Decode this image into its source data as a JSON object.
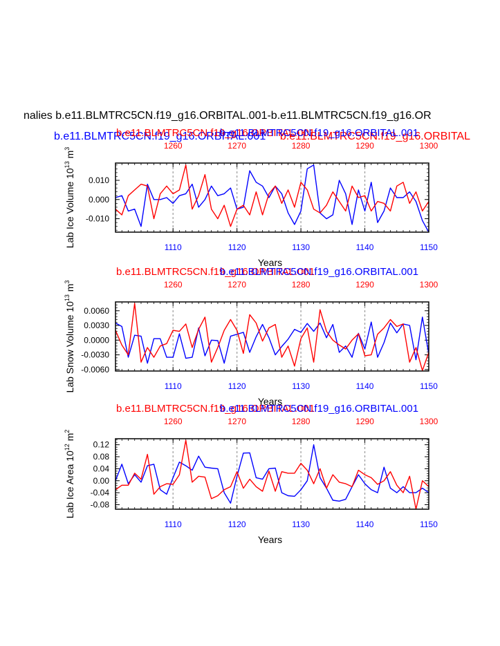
{
  "figure": {
    "main_title": "nalies b.e11.BLMTRC5CN.f19_g16.ORBITAL.001-b.e11.BLMTRC5CN.f19_g16.OR",
    "subtitle_left": "b.e11.BLMTRC5CN.f19_g16.ORBITAL.001",
    "subtitle_right": "b.e11.BLMTRC5CN.f19_g16.ORBITAL",
    "colors": {
      "red": "#ff0000",
      "blue": "#0000ff",
      "black": "#000000",
      "grid": "#999999"
    }
  },
  "chart_data": [
    {
      "type": "line",
      "title_red": "b.e11.BLMTRC5CN.f19_g16.ORBITAL.001",
      "title_blue": "b.e11.BLMTRC5CN.f19_g16.ORBITAL.001",
      "xlabel": "Years",
      "ylabel": "Lab Ice Volume 10",
      "ylabel_exp": "13",
      "ylabel_unit": "m",
      "ylabel_unit_exp": "3",
      "xlim_bottom": [
        1101,
        1150
      ],
      "xlim_top": [
        1251,
        1300
      ],
      "ylim": [
        -0.017,
        0.019
      ],
      "yticks": [
        -0.01,
        0.0,
        0.01
      ],
      "yticklabels": [
        "-0.010",
        "0.000",
        "0.010"
      ],
      "xticks_bottom": [
        1110,
        1120,
        1130,
        1140,
        1150
      ],
      "xticks_top": [
        1260,
        1270,
        1280,
        1290,
        1300
      ],
      "series": [
        {
          "name": "b.e11.BLMTRC5CN.f19_g16.ORBITAL.001 (bottom axis)",
          "color": "#0000ff",
          "x_start": 1101,
          "values": [
            0.001,
            0.002,
            -0.006,
            -0.005,
            -0.014,
            0.008,
            0.0,
            0.0,
            0.001,
            -0.002,
            0.002,
            0.003,
            0.008,
            -0.004,
            0.0,
            0.007,
            0.002,
            0.003,
            0.006,
            -0.005,
            -0.004,
            0.015,
            0.009,
            0.007,
            0.001,
            0.007,
            0.003,
            -0.007,
            -0.013,
            -0.006,
            0.016,
            0.018,
            -0.007,
            -0.01,
            -0.008,
            0.01,
            0.003,
            -0.013,
            0.005,
            -0.006,
            0.009,
            -0.012,
            -0.006,
            0.006,
            0.001,
            0.001,
            0.004,
            -0.001,
            -0.011,
            -0.017
          ]
        },
        {
          "name": "b.e11.BLMTRC5CN.f19_g16.ORBITAL (top axis)",
          "color": "#ff0000",
          "x_start": 1251,
          "values": [
            -0.005,
            -0.008,
            0.002,
            0.005,
            0.008,
            0.007,
            -0.01,
            0.003,
            0.007,
            0.003,
            0.005,
            0.018,
            -0.005,
            0.002,
            0.013,
            -0.005,
            -0.01,
            -0.003,
            -0.014,
            -0.005,
            -0.003,
            -0.008,
            0.004,
            -0.008,
            0.003,
            0.007,
            -0.002,
            0.005,
            -0.004,
            0.009,
            0.005,
            -0.005,
            -0.007,
            -0.003,
            0.004,
            -0.001,
            -0.006,
            0.007,
            0.001,
            0.002,
            -0.006,
            -0.001,
            -0.002,
            -0.006,
            0.007,
            0.009,
            -0.002,
            0.004,
            -0.006,
            -0.001
          ]
        }
      ]
    },
    {
      "type": "line",
      "title_red": "b.e11.BLMTRC5CN.f19_g16.ORBITAL.001",
      "title_blue": "b.e11.BLMTRC5CN.f19_g16.ORBITAL.001",
      "xlabel": "Years",
      "ylabel": "Lab Snow Volume 10",
      "ylabel_exp": "13",
      "ylabel_unit": "m",
      "ylabel_unit_exp": "3",
      "xlim_bottom": [
        1101,
        1150
      ],
      "xlim_top": [
        1251,
        1300
      ],
      "ylim": [
        -0.0063,
        0.0078
      ],
      "yticks": [
        -0.006,
        -0.003,
        0.0,
        0.003,
        0.006
      ],
      "yticklabels": [
        "-0.0060",
        "-0.0030",
        "0.0000",
        "0.0030",
        "0.0060"
      ],
      "xticks_bottom": [
        1110,
        1120,
        1130,
        1140,
        1150
      ],
      "xticks_top": [
        1260,
        1270,
        1280,
        1290,
        1300
      ],
      "series": [
        {
          "name": "b.e11.BLMTRC5CN.f19_g16.ORBITAL.001 (bottom axis)",
          "color": "#0000ff",
          "x_start": 1101,
          "values": [
            0.0035,
            0.0028,
            -0.0035,
            0.001,
            0.0008,
            -0.0047,
            0.0003,
            0.0003,
            -0.0035,
            -0.0035,
            0.0013,
            -0.0037,
            -0.0035,
            0.0025,
            -0.0032,
            0.0,
            -0.0001,
            -0.0047,
            0.0008,
            0.0012,
            0.0016,
            -0.0025,
            0.0007,
            0.0032,
            0.0005,
            -0.003,
            -0.0013,
            0.0002,
            0.0022,
            0.0016,
            0.0034,
            0.0018,
            0.0035,
            0.0005,
            0.0032,
            -0.0025,
            -0.0012,
            -0.0035,
            0.0014,
            -0.0018,
            0.0037,
            -0.0035,
            -0.0005,
            0.0035,
            0.0015,
            0.0033,
            0.003,
            -0.004,
            0.0047,
            -0.0028
          ]
        },
        {
          "name": "b.e11.BLMTRC5CN.f19_g16.ORBITAL (top axis)",
          "color": "#ff0000",
          "x_start": 1251,
          "values": [
            0.002,
            -0.001,
            -0.003,
            0.0075,
            -0.0045,
            -0.0015,
            -0.0035,
            -0.0012,
            -0.0007,
            0.002,
            0.0018,
            0.0033,
            -0.0015,
            0.0022,
            0.0047,
            -0.0045,
            -0.0015,
            0.002,
            0.0042,
            0.002,
            -0.0027,
            0.0052,
            0.0035,
            -0.0002,
            0.0025,
            0.0032,
            -0.0035,
            -0.0012,
            -0.0053,
            0.0003,
            0.0025,
            -0.0045,
            0.0062,
            0.0018,
            0.0,
            -0.001,
            -0.0018,
            0.0,
            0.0013,
            -0.0032,
            -0.003,
            0.0012,
            0.0025,
            0.0042,
            0.0028,
            0.0033,
            -0.0045,
            -0.0015,
            -0.0062,
            -0.0025
          ]
        }
      ]
    },
    {
      "type": "line",
      "title_red": "b.e11.BLMTRC5CN.f19_g16.ORBITAL.001",
      "title_blue": "b.e11.BLMTRC5CN.f19_g16.ORBITAL.001",
      "xlabel": "Years",
      "ylabel": "Lab Ice Area 10",
      "ylabel_exp": "12",
      "ylabel_unit": "m",
      "ylabel_unit_exp": "2",
      "xlim_bottom": [
        1101,
        1150
      ],
      "xlim_top": [
        1251,
        1300
      ],
      "ylim": [
        -0.095,
        0.14
      ],
      "yticks": [
        -0.08,
        -0.04,
        0.0,
        0.04,
        0.08,
        0.12
      ],
      "yticklabels": [
        "-0.08",
        "-0.04",
        "0.00",
        "0.04",
        "0.08",
        "0.12"
      ],
      "xticks_bottom": [
        1110,
        1120,
        1130,
        1140,
        1150
      ],
      "xticks_top": [
        1260,
        1270,
        1280,
        1290,
        1300
      ],
      "series": [
        {
          "name": "b.e11.BLMTRC5CN.f19_g16.ORBITAL.001 (bottom axis)",
          "color": "#0000ff",
          "x_start": 1101,
          "values": [
            0.0,
            0.055,
            -0.01,
            0.02,
            -0.005,
            0.05,
            0.055,
            -0.03,
            -0.045,
            0.01,
            0.062,
            0.05,
            0.035,
            0.082,
            0.045,
            0.042,
            0.04,
            -0.04,
            -0.075,
            0.015,
            0.092,
            0.093,
            0.01,
            0.005,
            0.04,
            0.042,
            -0.04,
            -0.05,
            -0.052,
            -0.03,
            0.0,
            0.12,
            0.01,
            -0.025,
            -0.065,
            -0.068,
            -0.062,
            -0.02,
            0.02,
            -0.01,
            -0.03,
            -0.04,
            0.045,
            -0.025,
            -0.04,
            -0.02,
            -0.04,
            -0.04,
            -0.025,
            -0.04
          ]
        },
        {
          "name": "b.e11.BLMTRC5CN.f19_g16.ORBITAL (top axis)",
          "color": "#ff0000",
          "x_start": 1251,
          "values": [
            -0.03,
            -0.015,
            -0.015,
            0.025,
            0.005,
            0.088,
            -0.045,
            -0.02,
            -0.01,
            -0.012,
            0.02,
            0.135,
            -0.005,
            0.015,
            0.012,
            -0.06,
            -0.05,
            -0.03,
            -0.02,
            0.03,
            -0.025,
            0.005,
            -0.02,
            -0.035,
            0.032,
            -0.035,
            0.03,
            0.025,
            0.025,
            0.058,
            0.035,
            -0.01,
            0.04,
            -0.025,
            0.02,
            -0.005,
            -0.01,
            -0.02,
            0.035,
            0.02,
            0.01,
            -0.012,
            0.0,
            0.03,
            -0.015,
            -0.04,
            0.015,
            -0.095,
            0.0,
            -0.02
          ]
        }
      ]
    }
  ]
}
